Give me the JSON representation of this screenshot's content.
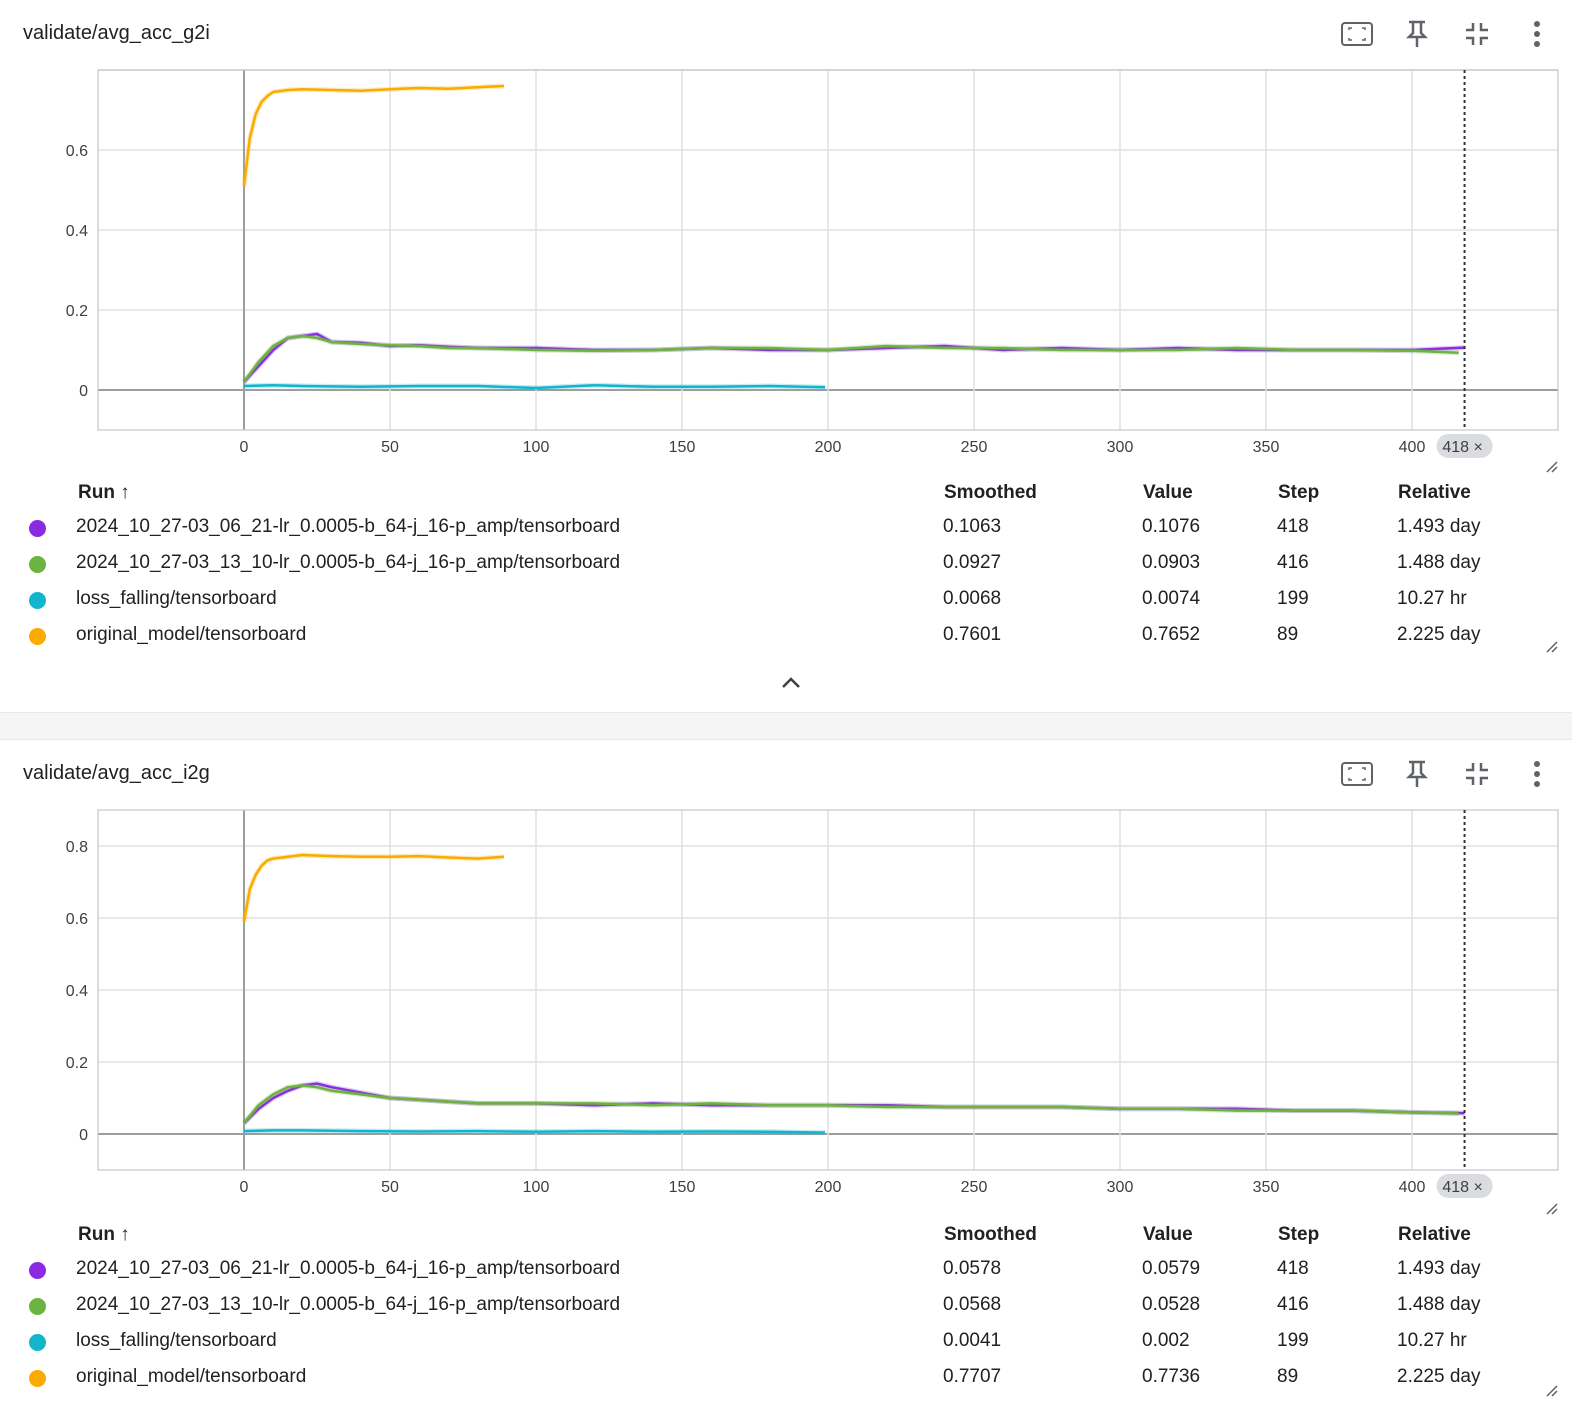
{
  "cards": [
    {
      "title": "validate/avg_acc_g2i",
      "table_headers": {
        "run": "Run ↑",
        "smoothed": "Smoothed",
        "value": "Value",
        "step": "Step",
        "relative": "Relative"
      },
      "rows": [
        {
          "run": "2024_10_27-03_06_21-lr_0.0005-b_64-j_16-p_amp/tensorboard",
          "smoothed": "0.1063",
          "value": "0.1076",
          "step": "418",
          "relative": "1.493 day",
          "color": "#8a2be2"
        },
        {
          "run": "2024_10_27-03_13_10-lr_0.0005-b_64-j_16-p_amp/tensorboard",
          "smoothed": "0.0927",
          "value": "0.0903",
          "step": "416",
          "relative": "1.488 day",
          "color": "#6cb33f"
        },
        {
          "run": "loss_falling/tensorboard",
          "smoothed": "0.0068",
          "value": "0.0074",
          "step": "199",
          "relative": "10.27 hr",
          "color": "#12b5cb"
        },
        {
          "run": "original_model/tensorboard",
          "smoothed": "0.7601",
          "value": "0.7652",
          "step": "89",
          "relative": "2.225 day",
          "color": "#f9ab00"
        }
      ]
    },
    {
      "title": "validate/avg_acc_i2g",
      "table_headers": {
        "run": "Run ↑",
        "smoothed": "Smoothed",
        "value": "Value",
        "step": "Step",
        "relative": "Relative"
      },
      "rows": [
        {
          "run": "2024_10_27-03_06_21-lr_0.0005-b_64-j_16-p_amp/tensorboard",
          "smoothed": "0.0578",
          "value": "0.0579",
          "step": "418",
          "relative": "1.493 day",
          "color": "#8a2be2"
        },
        {
          "run": "2024_10_27-03_13_10-lr_0.0005-b_64-j_16-p_amp/tensorboard",
          "smoothed": "0.0568",
          "value": "0.0528",
          "step": "416",
          "relative": "1.488 day",
          "color": "#6cb33f"
        },
        {
          "run": "loss_falling/tensorboard",
          "smoothed": "0.0041",
          "value": "0.002",
          "step": "199",
          "relative": "10.27 hr",
          "color": "#12b5cb"
        },
        {
          "run": "original_model/tensorboard",
          "smoothed": "0.7707",
          "value": "0.7736",
          "step": "89",
          "relative": "2.225 day",
          "color": "#f9ab00"
        }
      ]
    }
  ],
  "toolbar_icons": [
    "fit-screen-icon",
    "pin-icon",
    "collapse-icon",
    "more-vert-icon"
  ],
  "collapse_icon": "chevron-up-icon",
  "chart_data": [
    {
      "type": "line",
      "title": "validate/avg_acc_g2i",
      "xlim": [
        -50,
        450
      ],
      "ylim": [
        -0.1,
        0.8
      ],
      "x_ticks": [
        "0",
        "50",
        "100",
        "150",
        "200",
        "250",
        "300",
        "350",
        "400"
      ],
      "y_ticks": [
        "0",
        "0.2",
        "0.4",
        "0.6"
      ],
      "cursor_step": "418",
      "grid": true,
      "series": [
        {
          "name": "2024_10_27-03_06_21-lr_0.0005-b_64-j_16-p_amp/tensorboard",
          "color": "#8a2be2",
          "x": [
            0,
            5,
            10,
            15,
            20,
            25,
            30,
            40,
            50,
            60,
            70,
            80,
            100,
            120,
            140,
            160,
            180,
            200,
            220,
            240,
            260,
            280,
            300,
            320,
            340,
            360,
            380,
            400,
            418
          ],
          "y": [
            0.02,
            0.06,
            0.1,
            0.13,
            0.135,
            0.14,
            0.12,
            0.118,
            0.11,
            0.112,
            0.108,
            0.105,
            0.105,
            0.1,
            0.1,
            0.105,
            0.1,
            0.1,
            0.105,
            0.11,
            0.1,
            0.105,
            0.1,
            0.105,
            0.1,
            0.1,
            0.1,
            0.1,
            0.106
          ]
        },
        {
          "name": "2024_10_27-03_13_10-lr_0.0005-b_64-j_16-p_amp/tensorboard",
          "color": "#6cb33f",
          "x": [
            0,
            5,
            10,
            15,
            20,
            25,
            30,
            40,
            50,
            60,
            70,
            80,
            100,
            120,
            140,
            160,
            180,
            200,
            220,
            240,
            260,
            280,
            300,
            320,
            340,
            360,
            380,
            400,
            416
          ],
          "y": [
            0.02,
            0.07,
            0.11,
            0.13,
            0.135,
            0.13,
            0.12,
            0.115,
            0.112,
            0.11,
            0.105,
            0.105,
            0.1,
            0.098,
            0.1,
            0.105,
            0.105,
            0.1,
            0.11,
            0.105,
            0.105,
            0.1,
            0.1,
            0.1,
            0.105,
            0.1,
            0.1,
            0.098,
            0.093
          ]
        },
        {
          "name": "loss_falling/tensorboard",
          "color": "#12b5cb",
          "x": [
            0,
            10,
            20,
            40,
            60,
            80,
            100,
            120,
            140,
            160,
            180,
            199
          ],
          "y": [
            0.01,
            0.012,
            0.01,
            0.008,
            0.01,
            0.01,
            0.005,
            0.012,
            0.008,
            0.008,
            0.01,
            0.007
          ]
        },
        {
          "name": "original_model/tensorboard",
          "color": "#f9ab00",
          "x": [
            0,
            2,
            4,
            6,
            8,
            10,
            15,
            20,
            30,
            40,
            50,
            60,
            70,
            80,
            89
          ],
          "y": [
            0.51,
            0.63,
            0.69,
            0.72,
            0.735,
            0.745,
            0.75,
            0.752,
            0.75,
            0.748,
            0.752,
            0.755,
            0.753,
            0.757,
            0.76
          ]
        }
      ]
    },
    {
      "type": "line",
      "title": "validate/avg_acc_i2g",
      "xlim": [
        -50,
        450
      ],
      "ylim": [
        -0.1,
        0.9
      ],
      "x_ticks": [
        "0",
        "50",
        "100",
        "150",
        "200",
        "250",
        "300",
        "350",
        "400"
      ],
      "y_ticks": [
        "0",
        "0.2",
        "0.4",
        "0.6",
        "0.8"
      ],
      "cursor_step": "418",
      "grid": true,
      "series": [
        {
          "name": "2024_10_27-03_06_21-lr_0.0005-b_64-j_16-p_amp/tensorboard",
          "color": "#8a2be2",
          "x": [
            0,
            5,
            10,
            15,
            20,
            25,
            30,
            40,
            50,
            60,
            70,
            80,
            100,
            120,
            140,
            160,
            180,
            200,
            220,
            240,
            260,
            280,
            300,
            320,
            340,
            360,
            380,
            400,
            418
          ],
          "y": [
            0.03,
            0.07,
            0.1,
            0.12,
            0.135,
            0.14,
            0.13,
            0.115,
            0.1,
            0.095,
            0.09,
            0.085,
            0.085,
            0.08,
            0.085,
            0.08,
            0.08,
            0.08,
            0.08,
            0.075,
            0.075,
            0.075,
            0.07,
            0.07,
            0.07,
            0.065,
            0.065,
            0.06,
            0.058
          ]
        },
        {
          "name": "2024_10_27-03_13_10-lr_0.0005-b_64-j_16-p_amp/tensorboard",
          "color": "#6cb33f",
          "x": [
            0,
            5,
            10,
            15,
            20,
            25,
            30,
            40,
            50,
            60,
            70,
            80,
            100,
            120,
            140,
            160,
            180,
            200,
            220,
            240,
            260,
            280,
            300,
            320,
            340,
            360,
            380,
            400,
            416
          ],
          "y": [
            0.03,
            0.08,
            0.11,
            0.13,
            0.135,
            0.13,
            0.12,
            0.11,
            0.1,
            0.095,
            0.09,
            0.085,
            0.085,
            0.085,
            0.08,
            0.085,
            0.08,
            0.08,
            0.075,
            0.075,
            0.075,
            0.075,
            0.07,
            0.07,
            0.065,
            0.065,
            0.065,
            0.06,
            0.057
          ]
        },
        {
          "name": "loss_falling/tensorboard",
          "color": "#12b5cb",
          "x": [
            0,
            10,
            20,
            40,
            60,
            80,
            100,
            120,
            140,
            160,
            180,
            199
          ],
          "y": [
            0.008,
            0.01,
            0.01,
            0.008,
            0.007,
            0.008,
            0.006,
            0.008,
            0.006,
            0.007,
            0.006,
            0.004
          ]
        },
        {
          "name": "original_model/tensorboard",
          "color": "#f9ab00",
          "x": [
            0,
            2,
            4,
            6,
            8,
            10,
            15,
            20,
            30,
            40,
            50,
            60,
            70,
            80,
            89
          ],
          "y": [
            0.59,
            0.68,
            0.72,
            0.745,
            0.76,
            0.765,
            0.77,
            0.775,
            0.772,
            0.77,
            0.77,
            0.772,
            0.768,
            0.765,
            0.77
          ]
        }
      ]
    }
  ]
}
